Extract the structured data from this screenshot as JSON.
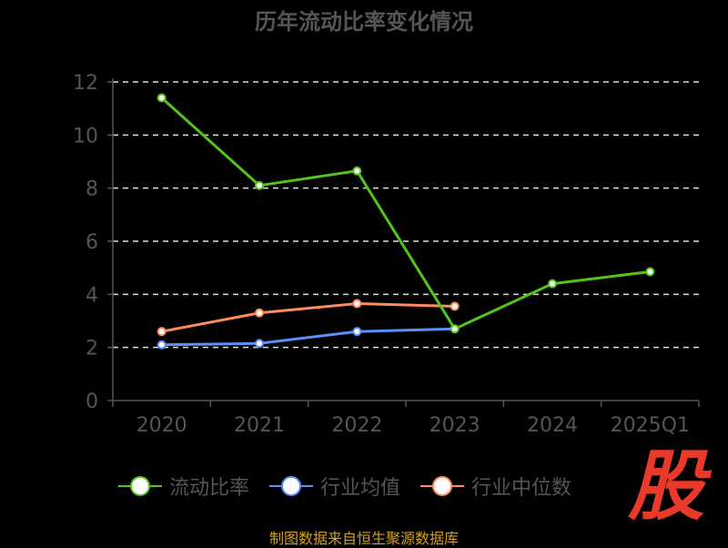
{
  "chart_data": {
    "type": "line",
    "title": "历年流动比率变化情况",
    "categories": [
      "2020",
      "2021",
      "2022",
      "2023",
      "2024",
      "2025Q1"
    ],
    "y_ticks": [
      "0",
      "2",
      "4",
      "6",
      "8",
      "10",
      "12"
    ],
    "ylim": [
      0,
      12
    ],
    "grid": true,
    "legend_position": "bottom",
    "series": [
      {
        "name": "流动比率",
        "color": "#52c41a",
        "values": [
          11.4,
          8.1,
          8.65,
          2.7,
          4.4,
          4.85
        ]
      },
      {
        "name": "行业均值",
        "color": "#5b8ff9",
        "values": [
          2.1,
          2.15,
          2.6,
          2.7,
          null,
          null
        ]
      },
      {
        "name": "行业中位数",
        "color": "#ff8c5a",
        "values": [
          2.6,
          3.3,
          3.65,
          3.55,
          null,
          null
        ]
      }
    ]
  },
  "watermark": "股",
  "source_note": "制图数据来自恒生聚源数据库"
}
